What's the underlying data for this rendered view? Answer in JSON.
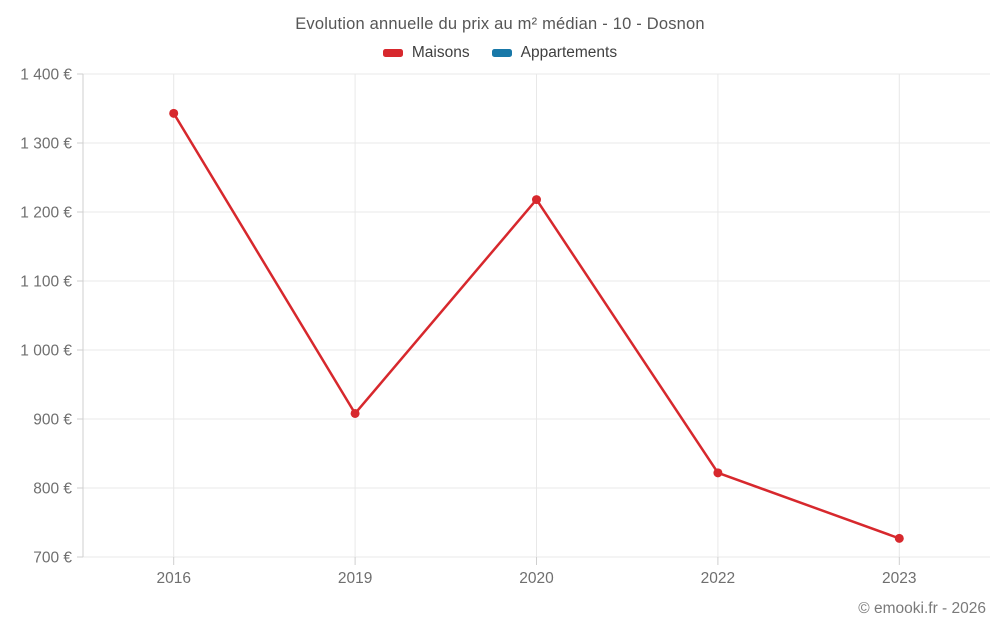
{
  "title": "Evolution annuelle du prix au m² médian - 10 - Dosnon",
  "copyright": "© emooki.fr - 2026",
  "legend": {
    "items": [
      {
        "label": "Maisons",
        "color": "#d7282d"
      },
      {
        "label": "Appartements",
        "color": "#1878a8"
      }
    ]
  },
  "colors": {
    "maisons": "#d7282d",
    "appartements": "#1878a8",
    "gridline": "#e8e8e8",
    "axis": "#cfcfcf",
    "tick_text": "#6f6f6f",
    "title_text": "#565656",
    "copyright_text": "#7a7a7a"
  },
  "chart_data": {
    "type": "line",
    "title": "Evolution annuelle du prix au m² médian - 10 - Dosnon",
    "categories": [
      "2016",
      "2019",
      "2020",
      "2022",
      "2023"
    ],
    "series": [
      {
        "name": "Maisons",
        "color": "#d7282d",
        "values": [
          1343,
          908,
          1218,
          822,
          727
        ]
      },
      {
        "name": "Appartements",
        "color": "#1878a8",
        "values": []
      }
    ],
    "xlabel": "",
    "ylabel": "",
    "ylim": [
      700,
      1400
    ],
    "ytick_step": 100,
    "ytick_labels": [
      "700 €",
      "800 €",
      "900 €",
      "1 000 €",
      "1 100 €",
      "1 200 €",
      "1 300 €",
      "1 400 €"
    ],
    "grid": true,
    "legend_position": "top"
  }
}
